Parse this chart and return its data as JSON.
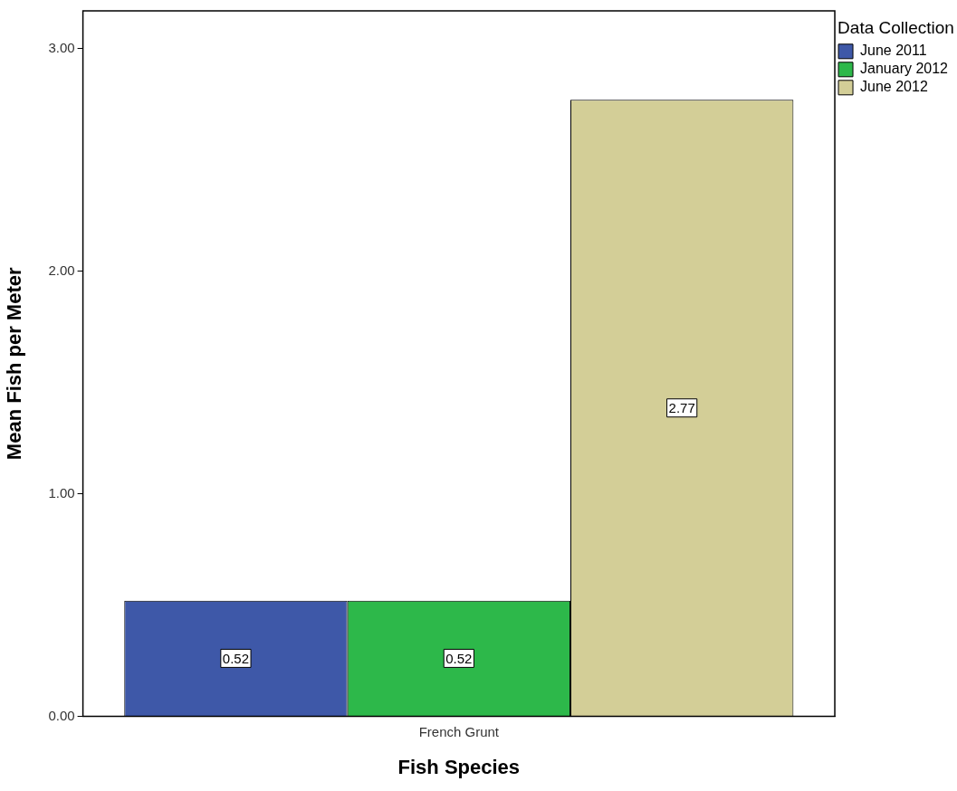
{
  "chart_data": {
    "type": "bar",
    "xlabel": "Fish Species",
    "ylabel": "Mean Fish per Meter",
    "legend_title": "Data Collection",
    "categories": [
      "French Grunt"
    ],
    "series": [
      {
        "name": "June 2011",
        "color": "#3e58a8",
        "values": [
          0.52
        ]
      },
      {
        "name": "January 2012",
        "color": "#2db84a",
        "values": [
          0.52
        ]
      },
      {
        "name": "June 2012",
        "color": "#d3ce97",
        "values": [
          2.77
        ]
      }
    ],
    "ylim": [
      0,
      3.17
    ],
    "yticks": [
      {
        "value": 0,
        "label": "0.00"
      },
      {
        "value": 1,
        "label": "1.00"
      },
      {
        "value": 2,
        "label": "2.00"
      },
      {
        "value": 3,
        "label": "3.00"
      }
    ],
    "grid": false,
    "legend": "top right",
    "data_labels": true
  }
}
